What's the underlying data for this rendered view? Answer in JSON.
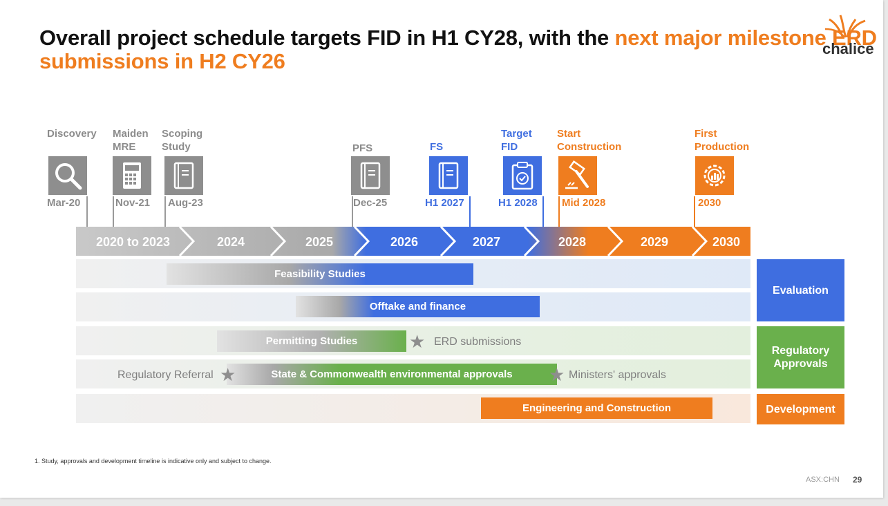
{
  "title": {
    "part1": "Overall project schedule targets FID in H1 CY28, with the ",
    "part2": "next major milestone ERD submissions in H2 CY26"
  },
  "logo": {
    "text": "chalice"
  },
  "milestones": [
    {
      "label": "Discovery",
      "date": "Mar-20",
      "icon": "magnifier-icon",
      "color": "grey"
    },
    {
      "label": "Maiden MRE",
      "date": "Nov-21",
      "icon": "calculator-icon",
      "color": "grey"
    },
    {
      "label": "Scoping Study",
      "date": "Aug-23",
      "icon": "document-icon",
      "color": "grey"
    },
    {
      "label": "PFS",
      "date": "Dec-25",
      "icon": "document-icon",
      "color": "grey"
    },
    {
      "label": "FS",
      "date": "H1 2027",
      "icon": "document-icon",
      "color": "blue"
    },
    {
      "label": "Target FID",
      "date": "H1 2028",
      "icon": "clipboard-check-icon",
      "color": "blue"
    },
    {
      "label": "Start Construction",
      "date": "Mid 2028",
      "icon": "hammer-icon",
      "color": "orange"
    },
    {
      "label": "First Production",
      "date": "2030",
      "icon": "gear-chart-icon",
      "color": "orange"
    }
  ],
  "years": [
    "2020 to 2023",
    "2024",
    "2025",
    "2026",
    "2027",
    "2028",
    "2029",
    "2030"
  ],
  "bars": {
    "feasibility": "Feasibility Studies",
    "offtake": "Offtake and finance",
    "permitting": "Permitting Studies",
    "state_approvals": "State & Commonwealth environmental approvals",
    "engineering": "Engineering and Construction"
  },
  "notes": {
    "erd": "ERD submissions",
    "referral": "Regulatory Referral",
    "ministers": "Ministers' approvals"
  },
  "categories": {
    "evaluation": "Evaluation",
    "regulatory": "Regulatory Approvals",
    "development": "Development"
  },
  "colors": {
    "orange": "#ef7d1f",
    "blue": "#3f6ee0",
    "grey": "#8e8e8e",
    "green": "#6ab04c"
  },
  "footnote": "1. Study, approvals and development timeline is indicative only and subject to change.",
  "footer": {
    "ticker": "ASX:CHN",
    "page": "29"
  }
}
